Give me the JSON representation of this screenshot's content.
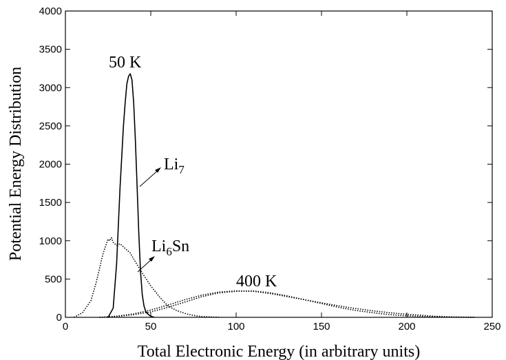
{
  "chart_data": {
    "type": "line",
    "title": "",
    "xlabel": "Total Electronic Energy (in arbitrary units)",
    "ylabel": "Potential Energy Distribution",
    "xlim": [
      0,
      250
    ],
    "ylim": [
      0,
      4000
    ],
    "xticks": [
      0,
      50,
      100,
      150,
      200,
      250
    ],
    "yticks": [
      0,
      500,
      1000,
      1500,
      2000,
      2500,
      3000,
      3500,
      4000
    ],
    "grid": false,
    "legend": "none",
    "series": [
      {
        "style": "solid",
        "x": [
          25,
          28,
          30,
          32,
          34,
          35,
          36,
          37,
          38,
          39,
          40,
          41,
          42,
          43,
          44,
          45,
          46,
          47,
          48,
          49,
          50,
          52
        ],
        "y": [
          0,
          120,
          700,
          1700,
          2500,
          2800,
          3050,
          3150,
          3180,
          3100,
          2800,
          2300,
          1700,
          1100,
          600,
          300,
          150,
          80,
          50,
          30,
          15,
          0
        ]
      },
      {
        "style": "dotted",
        "x": [
          5,
          10,
          15,
          18,
          20,
          22,
          24,
          25,
          26,
          27,
          28,
          30,
          32,
          35,
          38,
          40,
          45,
          50,
          55,
          60,
          65,
          70,
          75,
          80,
          85,
          90
        ],
        "y": [
          0,
          60,
          220,
          450,
          640,
          830,
          960,
          1020,
          1000,
          1040,
          980,
          940,
          960,
          900,
          840,
          760,
          580,
          410,
          270,
          150,
          90,
          50,
          25,
          10,
          5,
          0
        ]
      },
      {
        "style": "dotted",
        "x": [
          20,
          30,
          40,
          50,
          60,
          70,
          80,
          90,
          100,
          110,
          120,
          130,
          140,
          150,
          160,
          170,
          180,
          190,
          200,
          210,
          220,
          230,
          240
        ],
        "y": [
          0,
          10,
          35,
          70,
          130,
          200,
          270,
          320,
          340,
          345,
          320,
          280,
          230,
          180,
          130,
          90,
          60,
          35,
          20,
          10,
          5,
          2,
          0
        ]
      },
      {
        "style": "dotted",
        "x": [
          20,
          30,
          40,
          50,
          60,
          70,
          80,
          90,
          100,
          110,
          120,
          130,
          140,
          150,
          160,
          170,
          180,
          190,
          200,
          210,
          215,
          225,
          240
        ],
        "y": [
          0,
          15,
          45,
          95,
          160,
          230,
          290,
          330,
          345,
          340,
          310,
          270,
          230,
          190,
          150,
          115,
          85,
          60,
          40,
          25,
          15,
          5,
          0
        ]
      }
    ],
    "annotations": [
      {
        "text": "50 K",
        "x": 38,
        "y": 3300
      },
      {
        "text_main": "Li",
        "text_sub": "7",
        "x": 58,
        "y": 1900
      },
      {
        "text_main": "Li",
        "text_sub": "6",
        "text_tail": "Sn",
        "x": 52,
        "y": 850
      },
      {
        "text": "400 K",
        "x": 105,
        "y": 430
      }
    ]
  }
}
